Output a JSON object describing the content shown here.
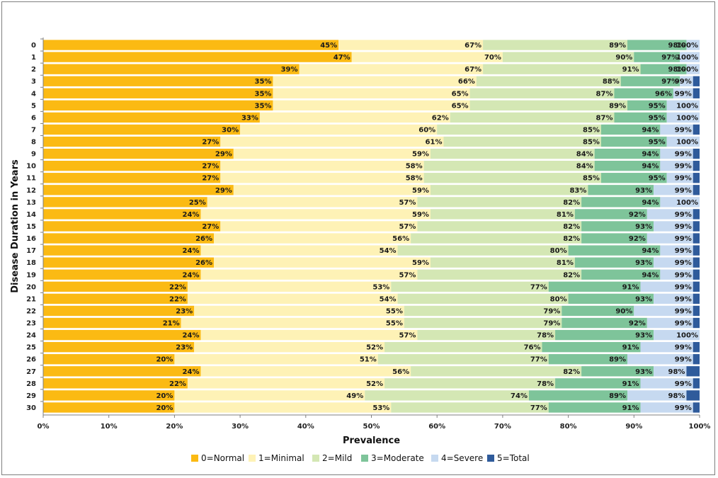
{
  "chart_data": {
    "type": "bar",
    "orientation": "horizontal",
    "stacked": true,
    "title": "",
    "xlabel": "Prevalence",
    "ylabel": "Disease Duration in Years",
    "xlim": [
      0,
      100
    ],
    "x_ticks": [
      "0%",
      "10%",
      "20%",
      "30%",
      "40%",
      "50%",
      "60%",
      "70%",
      "80%",
      "90%",
      "100%"
    ],
    "categories": [
      "0",
      "1",
      "2",
      "3",
      "4",
      "5",
      "6",
      "7",
      "8",
      "9",
      "10",
      "11",
      "12",
      "13",
      "14",
      "15",
      "16",
      "17",
      "18",
      "19",
      "20",
      "21",
      "22",
      "23",
      "24",
      "25",
      "26",
      "27",
      "28",
      "29",
      "30"
    ],
    "series": [
      {
        "name": "0=Normal",
        "color": "#FBBA13"
      },
      {
        "name": "1=Minimal",
        "color": "#FEF2B6"
      },
      {
        "name": "2=Mild",
        "color": "#D4E7B4"
      },
      {
        "name": "3=Moderate",
        "color": "#7EC49A"
      },
      {
        "name": "4=Severe",
        "color": "#C6D9F0"
      },
      {
        "name": "5=Total",
        "color": "#2F5B9B"
      }
    ],
    "cumulative_percent": [
      [
        45,
        67,
        89,
        98,
        100
      ],
      [
        47,
        70,
        90,
        97,
        100
      ],
      [
        39,
        67,
        91,
        98,
        100
      ],
      [
        35,
        66,
        88,
        97,
        99
      ],
      [
        35,
        65,
        87,
        96,
        99
      ],
      [
        35,
        65,
        89,
        95,
        100
      ],
      [
        33,
        62,
        87,
        95,
        100
      ],
      [
        30,
        60,
        85,
        94,
        99
      ],
      [
        27,
        61,
        85,
        95,
        100
      ],
      [
        29,
        59,
        84,
        94,
        99
      ],
      [
        27,
        58,
        84,
        94,
        99
      ],
      [
        27,
        58,
        85,
        95,
        99
      ],
      [
        29,
        59,
        83,
        93,
        99
      ],
      [
        25,
        57,
        82,
        94,
        100
      ],
      [
        24,
        59,
        81,
        92,
        99
      ],
      [
        27,
        57,
        82,
        93,
        99
      ],
      [
        26,
        56,
        82,
        92,
        99
      ],
      [
        24,
        54,
        80,
        94,
        99
      ],
      [
        26,
        59,
        81,
        93,
        99
      ],
      [
        24,
        57,
        82,
        94,
        99
      ],
      [
        22,
        53,
        77,
        91,
        99
      ],
      [
        22,
        54,
        80,
        93,
        99
      ],
      [
        23,
        55,
        79,
        90,
        99
      ],
      [
        21,
        55,
        79,
        92,
        99
      ],
      [
        24,
        57,
        78,
        93,
        100
      ],
      [
        23,
        52,
        76,
        91,
        99
      ],
      [
        20,
        51,
        77,
        89,
        99
      ],
      [
        24,
        56,
        82,
        93,
        98
      ],
      [
        22,
        52,
        78,
        91,
        99
      ],
      [
        20,
        49,
        74,
        89,
        98
      ],
      [
        20,
        53,
        77,
        91,
        99
      ]
    ],
    "legend_position": "bottom",
    "grid": false
  }
}
